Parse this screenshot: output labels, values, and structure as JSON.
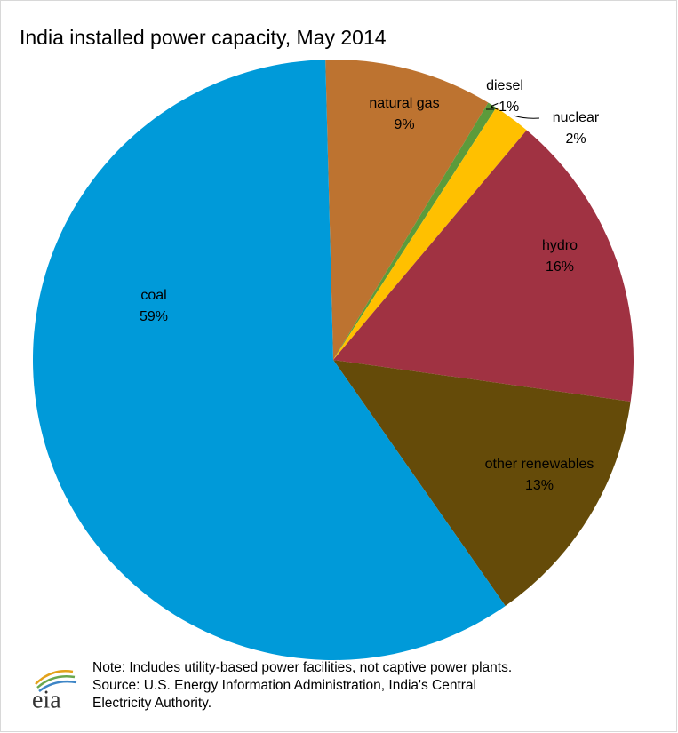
{
  "chart_data": {
    "type": "pie",
    "title": "India installed power capacity, May 2014",
    "categories": [
      "natural gas",
      "diesel",
      "nuclear",
      "hydro",
      "other renewables",
      "coal"
    ],
    "values": [
      9,
      0.5,
      2,
      16,
      13,
      59
    ],
    "value_labels": [
      "9%",
      "<1%",
      "2%",
      "16%",
      "13%",
      "59%"
    ],
    "colors": [
      "#bd7330",
      "#5c9b3b",
      "#ffc000",
      "#a03242",
      "#654b09",
      "#009ad9"
    ],
    "footnotes": [
      "Note: Includes utility-based power facilities, not captive power plants.",
      "Source: U.S. Energy Information  Administration, India's Central",
      "Electricity Authority."
    ],
    "logo": "eia"
  }
}
